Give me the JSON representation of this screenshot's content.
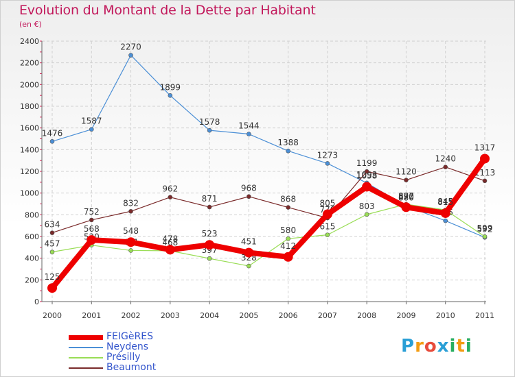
{
  "header": {
    "title": "Evolution du Montant de la Dette par Habitant",
    "subtitle": "(en €)"
  },
  "logo": {
    "letters": [
      "P",
      "r",
      "o",
      "x",
      "i",
      "t",
      "i"
    ],
    "colors": [
      "#2a9fd6",
      "#f39c12",
      "#e74c3c",
      "#2a9fd6",
      "#27ae60",
      "#f39c12",
      "#27ae60"
    ]
  },
  "chart_data": {
    "type": "line",
    "title": "Evolution du Montant de la Dette par Habitant",
    "subtitle": "(en €)",
    "xlabel": "",
    "ylabel": "",
    "x": [
      "2000",
      "2001",
      "2002",
      "2003",
      "2004",
      "2005",
      "2006",
      "2007",
      "2008",
      "2009",
      "2010",
      "2011"
    ],
    "ylim": [
      0,
      2400
    ],
    "yticks": [
      0,
      200,
      400,
      600,
      800,
      1000,
      1200,
      1400,
      1600,
      1800,
      2000,
      2200,
      2400
    ],
    "grid": true,
    "legend_position": "bottom-left",
    "series": [
      {
        "name": "FEIGèRES",
        "color": "#ee0000",
        "values": [
          125,
          568,
          548,
          478,
          523,
          451,
          412,
          805,
          1058,
          870,
          815,
          1317
        ]
      },
      {
        "name": "Neydens",
        "color": "#4b8fd6",
        "values": [
          1476,
          1587,
          2270,
          1899,
          1578,
          1544,
          1388,
          1273,
          1093,
          880,
          745,
          592
        ]
      },
      {
        "name": "Présilly",
        "color": "#99dd55",
        "values": [
          457,
          520,
          471,
          468,
          397,
          328,
          580,
          615,
          803,
          897,
          845,
          599
        ]
      },
      {
        "name": "Beaumont",
        "color": "#7a2a2a",
        "values": [
          634,
          752,
          832,
          962,
          871,
          968,
          868,
          770,
          1199,
          1120,
          1240,
          1113
        ]
      }
    ]
  }
}
